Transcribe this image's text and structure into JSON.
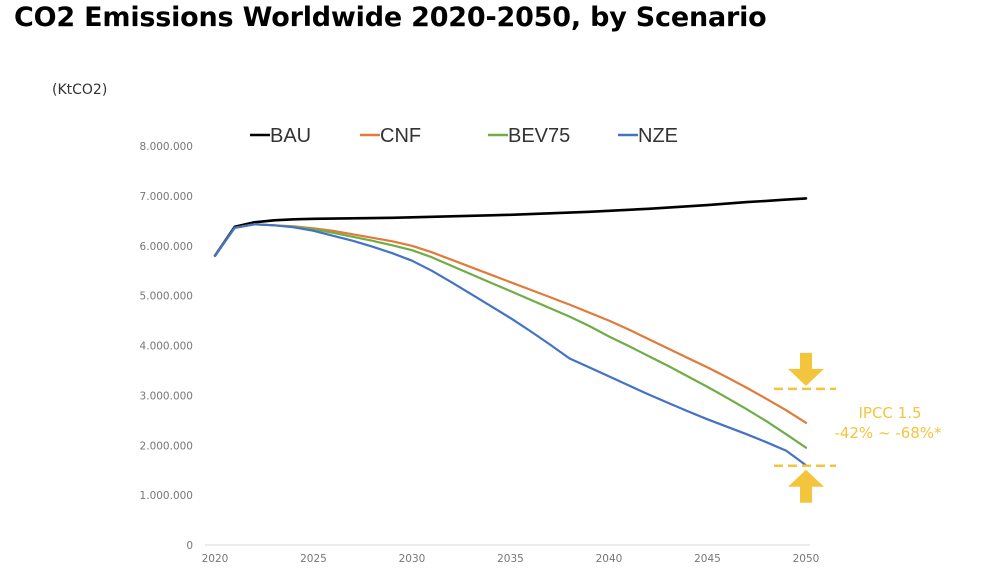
{
  "title": "CO2 Emissions Worldwide 2020-2050, by Scenario",
  "unit_label": "(KtCO2)",
  "chart_data": {
    "type": "line",
    "title": "CO2 Emissions Worldwide 2020-2050, by Scenario",
    "xlabel": "",
    "ylabel": "(KtCO2)",
    "ylim": [
      0,
      8000000
    ],
    "xlim": [
      2020,
      2050
    ],
    "yticks": [
      0,
      1000000,
      2000000,
      3000000,
      4000000,
      5000000,
      6000000,
      7000000,
      8000000
    ],
    "ytick_labels": [
      "0",
      "1.000.000",
      "2.000.000",
      "3.000.000",
      "4.000.000",
      "5.000.000",
      "6.000.000",
      "7.000.000",
      "8.000.000"
    ],
    "xticks": [
      2020,
      2025,
      2030,
      2035,
      2040,
      2045,
      2050
    ],
    "xtick_labels": [
      "2020",
      "2025",
      "2030",
      "2035",
      "2040",
      "2045",
      "2050"
    ],
    "grid": false,
    "legend_position": "top",
    "x": [
      2020,
      2021,
      2022,
      2023,
      2024,
      2025,
      2026,
      2027,
      2028,
      2029,
      2030,
      2031,
      2032,
      2033,
      2034,
      2035,
      2036,
      2037,
      2038,
      2039,
      2040,
      2041,
      2042,
      2043,
      2044,
      2045,
      2046,
      2047,
      2048,
      2049,
      2050
    ],
    "series": [
      {
        "name": "BAU",
        "color": "#000000",
        "values": [
          5800000,
          6380000,
          6470000,
          6510000,
          6530000,
          6540000,
          6545000,
          6550000,
          6555000,
          6560000,
          6570000,
          6580000,
          6590000,
          6600000,
          6610000,
          6620000,
          6635000,
          6650000,
          6665000,
          6680000,
          6700000,
          6720000,
          6740000,
          6765000,
          6790000,
          6815000,
          6845000,
          6875000,
          6900000,
          6925000,
          6950000
        ]
      },
      {
        "name": "CNF",
        "color": "#e07b39",
        "values": [
          5800000,
          6360000,
          6430000,
          6410000,
          6390000,
          6350000,
          6300000,
          6230000,
          6160000,
          6090000,
          6000000,
          5870000,
          5720000,
          5570000,
          5420000,
          5270000,
          5120000,
          4970000,
          4820000,
          4660000,
          4500000,
          4320000,
          4130000,
          3940000,
          3750000,
          3560000,
          3360000,
          3150000,
          2930000,
          2700000,
          2450000
        ]
      },
      {
        "name": "BEV75",
        "color": "#70ad47",
        "values": [
          5800000,
          6360000,
          6430000,
          6410000,
          6380000,
          6330000,
          6260000,
          6180000,
          6100000,
          6010000,
          5910000,
          5770000,
          5600000,
          5430000,
          5260000,
          5090000,
          4920000,
          4750000,
          4580000,
          4390000,
          4180000,
          3990000,
          3790000,
          3590000,
          3380000,
          3170000,
          2950000,
          2720000,
          2480000,
          2220000,
          1950000
        ]
      },
      {
        "name": "NZE",
        "color": "#4472c4",
        "values": [
          5800000,
          6360000,
          6430000,
          6410000,
          6370000,
          6300000,
          6200000,
          6100000,
          5980000,
          5850000,
          5700000,
          5500000,
          5270000,
          5030000,
          4790000,
          4550000,
          4290000,
          4020000,
          3740000,
          3560000,
          3380000,
          3200000,
          3020000,
          2850000,
          2680000,
          2520000,
          2370000,
          2220000,
          2060000,
          1890000,
          1600000
        ]
      }
    ],
    "annotations": [
      {
        "text_line1": "IPCC 1.5",
        "text_line2": "-42% ~ -68%*",
        "color": "#f2c53d",
        "upper_bound_value": 3350000,
        "lower_bound_value": 1650000,
        "x": 2050
      }
    ]
  }
}
